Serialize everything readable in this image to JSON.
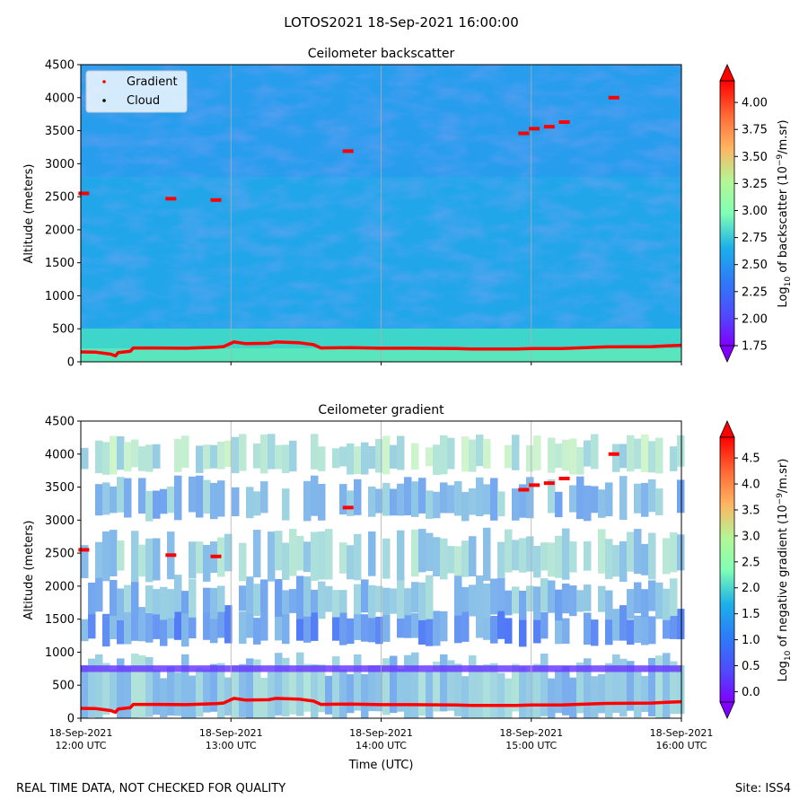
{
  "suptitle": "LOTOS2021 18-Sep-2021 16:00:00",
  "footer_left": "REAL TIME DATA, NOT CHECKED FOR QUALITY",
  "footer_right": "Site: ISS4",
  "chart_data": [
    {
      "type": "heatmap",
      "title": "Ceilometer backscatter",
      "ylabel": "Altitude (meters)",
      "xlabel": "",
      "ylim": [
        0,
        4500
      ],
      "yticks": [
        "0",
        "500",
        "1000",
        "1500",
        "2000",
        "2500",
        "3000",
        "3500",
        "4000",
        "4500"
      ],
      "xlim_hours": [
        12,
        16
      ],
      "colorbar": {
        "label_base": "Log",
        "label_sub": "10",
        "label_mid": " of backscatter (10",
        "label_sup": "−9",
        "label_end": "/m.sr)",
        "range": [
          1.75,
          4.2
        ],
        "ticks": [
          "1.75",
          "2.00",
          "2.25",
          "2.50",
          "2.75",
          "3.00",
          "3.25",
          "3.50",
          "3.75",
          "4.00"
        ],
        "extend": "both"
      },
      "legend": {
        "placement": "top-left",
        "entries": [
          {
            "label": "Gradient",
            "color": "#ff0000"
          },
          {
            "label": "Cloud",
            "color": "#000000"
          }
        ]
      }
    },
    {
      "type": "heatmap",
      "title": "Ceilometer gradient",
      "ylabel": "Altitude (meters)",
      "xlabel": "Time (UTC)",
      "ylim": [
        0,
        4500
      ],
      "yticks": [
        "0",
        "500",
        "1000",
        "1500",
        "2000",
        "2500",
        "3000",
        "3500",
        "4000",
        "4500"
      ],
      "xlim_hours": [
        12,
        16
      ],
      "xticks": [
        {
          "hour": 12,
          "line1": "18-Sep-2021",
          "line2": "12:00 UTC"
        },
        {
          "hour": 13,
          "line1": "18-Sep-2021",
          "line2": "13:00 UTC"
        },
        {
          "hour": 14,
          "line1": "18-Sep-2021",
          "line2": "14:00 UTC"
        },
        {
          "hour": 15,
          "line1": "18-Sep-2021",
          "line2": "15:00 UTC"
        },
        {
          "hour": 16,
          "line1": "18-Sep-2021",
          "line2": "16:00 UTC"
        }
      ],
      "colorbar": {
        "label_base": "Log",
        "label_sub": "10",
        "label_mid": " of negative gradient (10",
        "label_sup": "−9",
        "label_end": "/m.sr)",
        "range": [
          -0.2,
          4.9
        ],
        "ticks": [
          "0.0",
          "0.5",
          "1.0",
          "1.5",
          "2.0",
          "2.5",
          "3.0",
          "3.5",
          "4.0",
          "4.5"
        ],
        "extend": "both"
      },
      "layers": [
        {
          "name": "low-layer",
          "base_m": 0,
          "top_m": 800,
          "level": 1.3
        },
        {
          "name": "layer-1300",
          "base_m": 1150,
          "top_m": 1600,
          "level": 0.9
        },
        {
          "name": "layer-1700",
          "base_m": 1550,
          "top_m": 2050,
          "level": 1.2
        },
        {
          "name": "layer-2500",
          "base_m": 2150,
          "top_m": 2750,
          "level": 1.4
        },
        {
          "name": "layer-3300",
          "base_m": 3050,
          "top_m": 3550,
          "level": 1.2
        },
        {
          "name": "layer-3900",
          "base_m": 3750,
          "top_m": 4200,
          "level": 1.6
        }
      ]
    }
  ],
  "boundary_layer_series": {
    "name": "Gradient",
    "hours": [
      12.0,
      12.1,
      12.15,
      12.2,
      12.23,
      12.25,
      12.33,
      12.35,
      12.5,
      12.7,
      12.9,
      12.95,
      13.02,
      13.1,
      13.25,
      13.3,
      13.45,
      13.55,
      13.6,
      13.8,
      14.0,
      14.2,
      14.5,
      14.6,
      14.9,
      15.0,
      15.2,
      15.3,
      15.5,
      15.8,
      15.9,
      16.0
    ],
    "altitudes_m": [
      150,
      145,
      130,
      115,
      90,
      140,
      160,
      210,
      210,
      205,
      220,
      230,
      300,
      275,
      280,
      300,
      290,
      260,
      210,
      215,
      205,
      205,
      200,
      195,
      195,
      200,
      200,
      210,
      225,
      230,
      240,
      250
    ]
  },
  "elevated_gradient_points": [
    {
      "hour": 12.02,
      "altitude_m": 2550
    },
    {
      "hour": 12.6,
      "altitude_m": 2470
    },
    {
      "hour": 12.9,
      "altitude_m": 2450
    },
    {
      "hour": 13.78,
      "altitude_m": 3190
    },
    {
      "hour": 14.95,
      "altitude_m": 3460
    },
    {
      "hour": 15.02,
      "altitude_m": 3530
    },
    {
      "hour": 15.12,
      "altitude_m": 3560
    },
    {
      "hour": 15.22,
      "altitude_m": 3630
    },
    {
      "hour": 15.55,
      "altitude_m": 4000
    }
  ]
}
